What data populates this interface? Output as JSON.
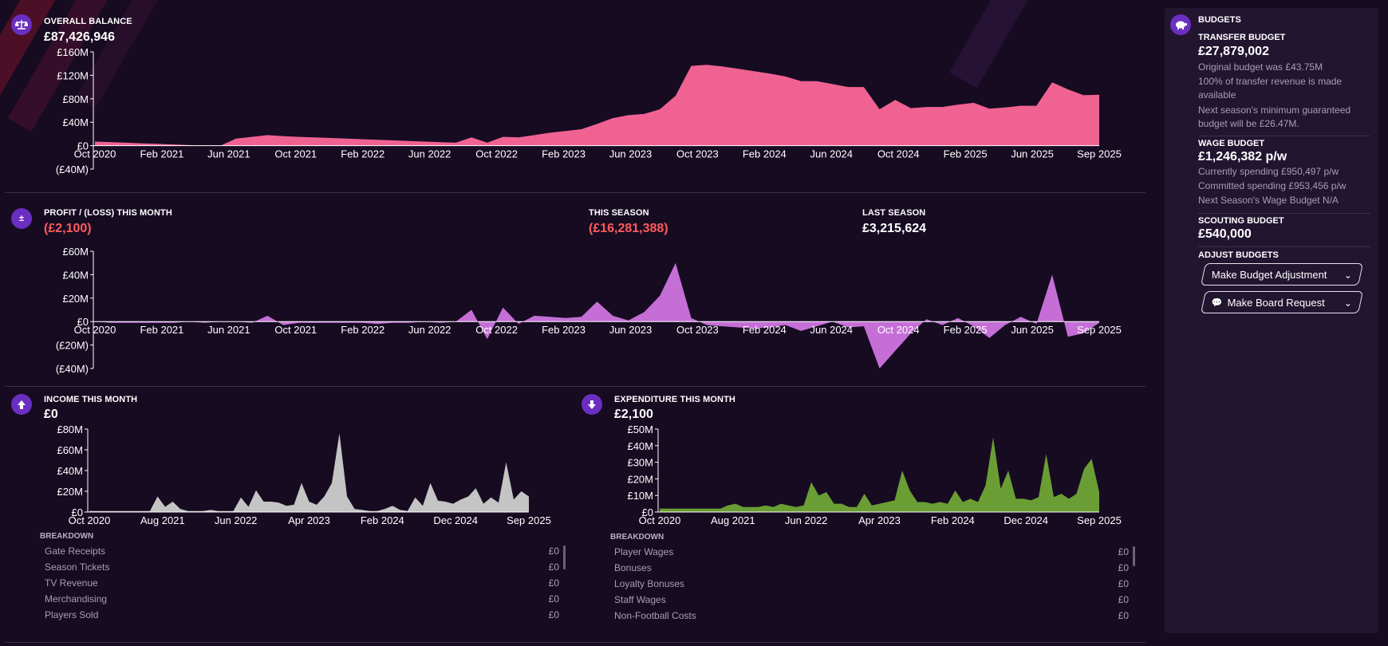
{
  "colors": {
    "background": "#170b22",
    "accent": "#6a2fc0",
    "balance_fill": "#f06292",
    "profit_fill": "#c56fd6",
    "income_fill": "#c4c4c4",
    "expenditure_fill": "#6a9e34",
    "negative_text": "#ff5b5b"
  },
  "balance": {
    "title": "OVERALL BALANCE",
    "value": "£87,426,946",
    "icon": "scales-icon",
    "y_ticks": [
      "£160M",
      "£120M",
      "£80M",
      "£40M",
      "£0",
      "(£40M)"
    ],
    "x_ticks": [
      "Oct 2020",
      "Feb 2021",
      "Jun 2021",
      "Oct 2021",
      "Feb 2022",
      "Jun 2022",
      "Oct 2022",
      "Feb 2023",
      "Jun 2023",
      "Oct 2023",
      "Feb 2024",
      "Jun 2024",
      "Oct 2024",
      "Feb 2025",
      "Jun 2025",
      "Sep 2025"
    ]
  },
  "profit": {
    "title": "PROFIT / (LOSS) THIS MONTH",
    "value": "(£2,100)",
    "icon": "plus-minus-icon",
    "this_season_label": "THIS SEASON",
    "this_season_value": "(£16,281,388)",
    "last_season_label": "LAST SEASON",
    "last_season_value": "£3,215,624",
    "y_ticks": [
      "£60M",
      "£40M",
      "£20M",
      "£0",
      "(£20M)",
      "(£40M)"
    ],
    "x_ticks": [
      "Oct 2020",
      "Feb 2021",
      "Jun 2021",
      "Oct 2021",
      "Feb 2022",
      "Jun 2022",
      "Oct 2022",
      "Feb 2023",
      "Jun 2023",
      "Oct 2023",
      "Feb 2024",
      "Jun 2024",
      "Oct 2024",
      "Feb 2025",
      "Jun 2025",
      "Sep 2025"
    ]
  },
  "income": {
    "title": "INCOME THIS MONTH",
    "value": "£0",
    "icon": "arrow-up-icon",
    "y_ticks": [
      "£80M",
      "£60M",
      "£40M",
      "£20M",
      "£0"
    ],
    "x_ticks": [
      "Oct 2020",
      "Aug 2021",
      "Jun 2022",
      "Apr 2023",
      "Feb 2024",
      "Dec 2024",
      "Sep 2025"
    ],
    "breakdown_title": "BREAKDOWN",
    "breakdown": [
      {
        "label": "Gate Receipts",
        "value": "£0"
      },
      {
        "label": "Season Tickets",
        "value": "£0"
      },
      {
        "label": "TV Revenue",
        "value": "£0"
      },
      {
        "label": "Merchandising",
        "value": "£0"
      },
      {
        "label": "Players Sold",
        "value": "£0"
      }
    ]
  },
  "expenditure": {
    "title": "EXPENDITURE THIS MONTH",
    "value": "£2,100",
    "icon": "arrow-down-icon",
    "y_ticks": [
      "£50M",
      "£40M",
      "£30M",
      "£20M",
      "£10M",
      "£0"
    ],
    "x_ticks": [
      "Oct 2020",
      "Aug 2021",
      "Jun 2022",
      "Apr 2023",
      "Feb 2024",
      "Dec 2024",
      "Sep 2025"
    ],
    "breakdown_title": "BREAKDOWN",
    "breakdown": [
      {
        "label": "Player Wages",
        "value": "£0"
      },
      {
        "label": "Bonuses",
        "value": "£0"
      },
      {
        "label": "Loyalty Bonuses",
        "value": "£0"
      },
      {
        "label": "Staff Wages",
        "value": "£0"
      },
      {
        "label": "Non-Football Costs",
        "value": "£0"
      }
    ]
  },
  "budgets": {
    "title": "BUDGETS",
    "icon": "piggy-bank-icon",
    "transfer_label": "TRANSFER BUDGET",
    "transfer_value": "£27,879,002",
    "transfer_note1": "Original budget was £43.75M",
    "transfer_note2": "100% of transfer revenue is made available",
    "transfer_note3": "Next season's minimum guaranteed budget will be £26.47M.",
    "wage_label": "WAGE BUDGET",
    "wage_value": "£1,246,382 p/w",
    "wage_note1": "Currently spending £950,497 p/w",
    "wage_note2": "Committed spending £953,456 p/w",
    "wage_note3": "Next Season's Wage Budget N/A",
    "scouting_label": "SCOUTING BUDGET",
    "scouting_value": "£540,000",
    "adjust_label": "ADJUST BUDGETS",
    "adjust_button": "Make Budget Adjustment",
    "board_button": "Make Board Request"
  },
  "chart_data": [
    {
      "type": "area",
      "title": "OVERALL BALANCE",
      "ylim": [
        -40,
        160
      ],
      "unit": "£M",
      "x_start": "Oct 2020",
      "x_end": "Sep 2025",
      "values": [
        7,
        6,
        5,
        4,
        3,
        2,
        1,
        0,
        0,
        12,
        15,
        18,
        16,
        15,
        14,
        13,
        12,
        11,
        10,
        9,
        8,
        7,
        6,
        5,
        14,
        5,
        15,
        14,
        18,
        22,
        25,
        28,
        37,
        47,
        52,
        54,
        62,
        85,
        136,
        138,
        135,
        131,
        127,
        123,
        118,
        110,
        110,
        105,
        100,
        100,
        62,
        78,
        64,
        66,
        66,
        70,
        73,
        63,
        65,
        68,
        68,
        108,
        96,
        86,
        87
      ]
    },
    {
      "type": "area",
      "title": "PROFIT / (LOSS) THIS MONTH",
      "ylim": [
        -40,
        60
      ],
      "unit": "£M",
      "x_start": "Oct 2020",
      "x_end": "Sep 2025",
      "values": [
        0,
        -1,
        -1,
        -1,
        -1,
        -1,
        0,
        -1,
        0,
        0,
        -1,
        5,
        -3,
        -1,
        -1,
        -1,
        -1,
        -1,
        -2,
        -1,
        -1,
        0,
        -1,
        0,
        10,
        -15,
        12,
        -2,
        5,
        4,
        3,
        4,
        17,
        5,
        1,
        8,
        22,
        50,
        3,
        -3,
        -4,
        -5,
        -6,
        -5,
        -3,
        -8,
        -4,
        0,
        -5,
        -4,
        -40,
        -25,
        -10,
        2,
        -3,
        3,
        -4,
        -14,
        -3,
        4,
        -2,
        40,
        -13,
        -10,
        -1
      ]
    },
    {
      "type": "area",
      "title": "INCOME THIS MONTH",
      "ylim": [
        0,
        80
      ],
      "unit": "£M",
      "x_start": "Oct 2020",
      "x_end": "Sep 2025",
      "values": [
        1,
        1,
        1,
        1,
        1,
        1,
        1,
        1,
        1,
        15,
        5,
        10,
        3,
        1,
        1,
        1,
        2,
        1,
        1,
        1,
        14,
        5,
        21,
        10,
        10,
        9,
        6,
        7,
        28,
        10,
        7,
        15,
        28,
        76,
        15,
        3,
        2,
        1,
        1,
        3,
        6,
        2,
        1,
        14,
        6,
        28,
        11,
        10,
        8,
        12,
        15,
        23,
        8,
        14,
        9,
        48,
        12,
        20,
        15
      ]
    },
    {
      "type": "area",
      "title": "EXPENDITURE THIS MONTH",
      "ylim": [
        0,
        50
      ],
      "unit": "£M",
      "x_start": "Oct 2020",
      "x_end": "Sep 2025",
      "values": [
        2,
        2,
        2,
        2,
        2,
        2,
        2,
        2,
        2,
        4,
        5,
        3,
        3,
        3,
        4,
        3,
        5,
        4,
        3,
        4,
        18,
        10,
        12,
        5,
        5,
        3,
        3,
        11,
        4,
        5,
        6,
        7,
        25,
        13,
        6,
        6,
        5,
        6,
        5,
        13,
        6,
        8,
        6,
        16,
        45,
        14,
        25,
        8,
        8,
        7,
        9,
        35,
        9,
        11,
        8,
        11,
        26,
        32,
        12
      ]
    }
  ]
}
